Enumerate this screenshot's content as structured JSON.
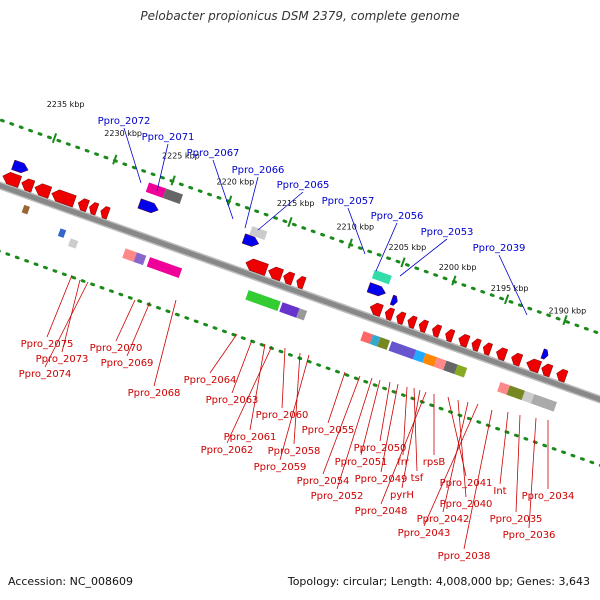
{
  "title": "Pelobacter propionicus DSM 2379, complete genome",
  "footer": {
    "accession": "Accession: NC_008609",
    "summary": "Topology: circular; Length: 4,008,000 bp; Genes: 3,643"
  },
  "colors": {
    "label_upper": "#0000cc",
    "label_lower": "#cc0000",
    "backbone": "#888888",
    "tick": "#1a8a1a"
  },
  "kbp_ticks": [
    "2235 kbp",
    "2230 kbp",
    "2225 kbp",
    "2220 kbp",
    "2215 kbp",
    "2210 kbp",
    "2205 kbp",
    "2200 kbp",
    "2195 kbp",
    "2190 kbp"
  ],
  "upper_labels": [
    "Ppro_2072",
    "Ppro_2071",
    "Ppro_2067",
    "Ppro_2066",
    "Ppro_2065",
    "Ppro_2057",
    "Ppro_2056",
    "Ppro_2053",
    "Ppro_2039"
  ],
  "lower_labels": [
    "Ppro_2075",
    "Ppro_2073",
    "Ppro_2074",
    "Ppro_2070",
    "Ppro_2069",
    "Ppro_2068",
    "Ppro_2064",
    "Ppro_2063",
    "Ppro_2061",
    "Ppro_2062",
    "Ppro_2060",
    "Ppro_2058",
    "Ppro_2059",
    "Ppro_2055",
    "Ppro_2054",
    "Ppro_2052",
    "Ppro_2051",
    "Ppro_2050",
    "Ppro_2049",
    "frr",
    "tsf",
    "pyrH",
    "Ppro_2048",
    "rpsB",
    "Ppro_2041",
    "Ppro_2040",
    "Ppro_2042",
    "Ppro_2043",
    "Ppro_2038",
    "Int",
    "Ppro_2035",
    "Ppro_2036",
    "Ppro_2034"
  ]
}
